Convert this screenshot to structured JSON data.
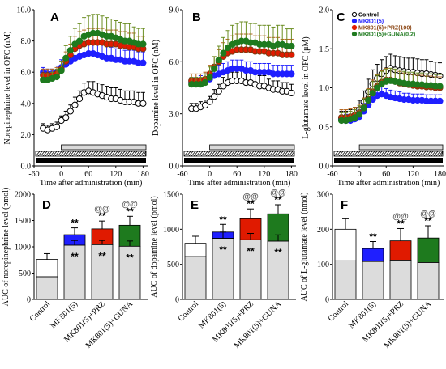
{
  "colors": {
    "control": "#ffffff",
    "mk801": "#1f1fff",
    "prz": "#e01a00",
    "guna": "#1e7a1e",
    "base": "#dcdcdc",
    "err_prz": "#b5651d",
    "err_guna": "#6b8e23"
  },
  "common": {
    "xlabel": "Time after administration (min)",
    "xticks": [
      "-60",
      "0",
      "60",
      "120",
      "180"
    ]
  },
  "chart_data": [
    {
      "panel": "A",
      "type": "line",
      "ylabel": "Norepinephrine level in OFC (nM)",
      "ylim": [
        0,
        10
      ],
      "yticks": [
        "0.0",
        "2.0",
        "4.0",
        "6.0",
        "8.0",
        "10.0"
      ],
      "x": [
        -40,
        -30,
        -20,
        -10,
        0,
        10,
        20,
        30,
        40,
        50,
        60,
        70,
        80,
        90,
        100,
        110,
        120,
        130,
        140,
        150,
        160,
        170,
        180
      ],
      "series": [
        {
          "name": "Control",
          "style": "control",
          "values": [
            2.4,
            2.3,
            2.4,
            2.5,
            2.9,
            3.1,
            3.5,
            3.9,
            4.3,
            4.7,
            4.8,
            4.7,
            4.6,
            4.5,
            4.4,
            4.3,
            4.3,
            4.2,
            4.1,
            4.1,
            4.1,
            4.0,
            4.0
          ],
          "err": [
            0.3,
            0.3,
            0.3,
            0.3,
            0.3,
            0.4,
            0.4,
            0.5,
            0.5,
            0.6,
            0.6,
            0.7,
            0.7,
            0.7,
            0.7,
            0.7,
            0.7,
            0.7,
            0.7,
            0.7,
            0.7,
            0.7,
            0.7
          ]
        },
        {
          "name": "MK801(5)",
          "style": "mk801",
          "values": [
            6.0,
            5.9,
            5.9,
            6.0,
            6.3,
            6.5,
            6.7,
            6.9,
            7.0,
            7.1,
            7.2,
            7.2,
            7.1,
            7.0,
            6.9,
            6.9,
            6.8,
            6.8,
            6.7,
            6.7,
            6.7,
            6.6,
            6.6
          ],
          "err": [
            0.3,
            0.3,
            0.3,
            0.4,
            0.5,
            0.5,
            0.6,
            0.6,
            0.7,
            0.7,
            0.8,
            0.8,
            0.8,
            0.8,
            0.8,
            0.7,
            0.7,
            0.7,
            0.7,
            0.7,
            0.7,
            0.7,
            0.7
          ]
        },
        {
          "name": "MK801(5)+PRZ(100)",
          "style": "prz",
          "values": [
            5.8,
            5.8,
            5.8,
            5.9,
            6.2,
            6.7,
            7.1,
            7.5,
            7.7,
            7.8,
            7.9,
            7.9,
            7.9,
            7.9,
            7.8,
            7.8,
            7.8,
            7.7,
            7.7,
            7.6,
            7.6,
            7.5,
            7.5
          ],
          "err": [
            0.4,
            0.4,
            0.4,
            0.4,
            0.5,
            0.6,
            0.7,
            0.8,
            0.9,
            0.9,
            0.9,
            0.9,
            0.9,
            0.9,
            0.9,
            0.9,
            0.9,
            0.9,
            0.9,
            0.9,
            0.9,
            0.8,
            0.8
          ]
        },
        {
          "name": "MK801(5)+GUNA(0.2)",
          "style": "guna",
          "values": [
            5.5,
            5.5,
            5.6,
            5.7,
            6.1,
            6.9,
            7.4,
            7.8,
            8.0,
            8.3,
            8.4,
            8.5,
            8.5,
            8.4,
            8.3,
            8.3,
            8.2,
            8.1,
            8.0,
            8.0,
            7.9,
            7.8,
            7.8
          ],
          "err": [
            0.4,
            0.4,
            0.4,
            0.5,
            0.6,
            0.8,
            0.9,
            1.0,
            1.1,
            1.2,
            1.2,
            1.2,
            1.2,
            1.2,
            1.2,
            1.1,
            1.1,
            1.1,
            1.1,
            1.1,
            1.0,
            1.0,
            1.0
          ]
        }
      ]
    },
    {
      "panel": "B",
      "type": "line",
      "ylabel": "Dopamine level in OFC (nM)",
      "ylim": [
        0,
        9
      ],
      "yticks": [
        "0.0",
        "3.0",
        "6.0",
        "9.0"
      ],
      "x": [
        -40,
        -30,
        -20,
        -10,
        0,
        10,
        20,
        30,
        40,
        50,
        60,
        70,
        80,
        90,
        100,
        110,
        120,
        130,
        140,
        150,
        160,
        170,
        180
      ],
      "series": [
        {
          "name": "Control",
          "style": "control",
          "values": [
            3.3,
            3.3,
            3.4,
            3.5,
            3.7,
            4.0,
            4.3,
            4.6,
            4.8,
            4.9,
            4.9,
            4.9,
            4.8,
            4.8,
            4.7,
            4.6,
            4.6,
            4.5,
            4.4,
            4.4,
            4.3,
            4.3,
            4.2
          ],
          "err": [
            0.3,
            0.3,
            0.3,
            0.3,
            0.3,
            0.4,
            0.4,
            0.5,
            0.5,
            0.5,
            0.5,
            0.6,
            0.6,
            0.6,
            0.6,
            0.6,
            0.6,
            0.5,
            0.5,
            0.5,
            0.5,
            0.5,
            0.5
          ]
        },
        {
          "name": "MK801(5)",
          "style": "mk801",
          "values": [
            4.8,
            4.8,
            4.8,
            4.9,
            5.0,
            5.2,
            5.3,
            5.4,
            5.5,
            5.6,
            5.6,
            5.6,
            5.5,
            5.5,
            5.4,
            5.4,
            5.4,
            5.4,
            5.3,
            5.3,
            5.3,
            5.3,
            5.3
          ],
          "err": [
            0.3,
            0.3,
            0.4,
            0.4,
            0.4,
            0.5,
            0.5,
            0.5,
            0.5,
            0.5,
            0.5,
            0.5,
            0.5,
            0.5,
            0.5,
            0.5,
            0.5,
            0.5,
            0.5,
            0.5,
            0.5,
            0.5,
            0.5
          ]
        },
        {
          "name": "MK801(5)+PRZ(100)",
          "style": "prz",
          "values": [
            4.9,
            4.9,
            4.9,
            5.0,
            5.3,
            5.7,
            6.0,
            6.3,
            6.5,
            6.6,
            6.7,
            6.7,
            6.7,
            6.7,
            6.6,
            6.6,
            6.6,
            6.5,
            6.5,
            6.5,
            6.4,
            6.4,
            6.4
          ],
          "err": [
            0.4,
            0.4,
            0.4,
            0.4,
            0.5,
            0.6,
            0.7,
            0.8,
            0.8,
            0.9,
            0.9,
            0.9,
            0.9,
            0.9,
            0.9,
            0.9,
            0.9,
            0.9,
            0.9,
            0.9,
            0.9,
            0.9,
            0.9
          ]
        },
        {
          "name": "MK801(5)+GUNA(0.2)",
          "style": "guna",
          "values": [
            4.7,
            4.7,
            4.7,
            4.8,
            5.1,
            5.6,
            6.1,
            6.5,
            6.8,
            7.0,
            7.1,
            7.2,
            7.2,
            7.1,
            7.1,
            7.0,
            7.0,
            7.0,
            6.9,
            7.0,
            7.0,
            6.9,
            6.9
          ],
          "err": [
            0.4,
            0.4,
            0.4,
            0.5,
            0.6,
            0.7,
            0.8,
            0.9,
            1.0,
            1.1,
            1.1,
            1.1,
            1.1,
            1.1,
            1.1,
            1.1,
            1.1,
            1.1,
            1.1,
            1.1,
            1.1,
            1.0,
            1.0
          ]
        }
      ]
    },
    {
      "panel": "C",
      "type": "line",
      "ylabel": "L-glutamate level in OFC (μM)",
      "ylim": [
        0,
        2
      ],
      "yticks": [
        "0.0",
        "0.5",
        "1.0",
        "1.5",
        "2.0"
      ],
      "x": [
        -40,
        -30,
        -20,
        -10,
        0,
        10,
        20,
        30,
        40,
        50,
        60,
        70,
        80,
        90,
        100,
        110,
        120,
        130,
        140,
        150,
        160,
        170,
        180
      ],
      "legend": [
        "Control",
        "MK801(5)",
        "MK801(5)+PRZ(100)",
        "MK801(5)+GUNA(0.2)"
      ],
      "series": [
        {
          "name": "Control",
          "style": "control",
          "values": [
            0.6,
            0.6,
            0.62,
            0.65,
            0.72,
            0.82,
            0.95,
            1.05,
            1.12,
            1.18,
            1.22,
            1.25,
            1.23,
            1.22,
            1.21,
            1.2,
            1.2,
            1.19,
            1.18,
            1.18,
            1.17,
            1.16,
            1.15
          ],
          "err": [
            0.1,
            0.1,
            0.1,
            0.1,
            0.12,
            0.14,
            0.16,
            0.18,
            0.18,
            0.18,
            0.18,
            0.18,
            0.18,
            0.18,
            0.18,
            0.18,
            0.18,
            0.18,
            0.18,
            0.18,
            0.17,
            0.17,
            0.17
          ]
        },
        {
          "name": "MK801(5)",
          "style": "mk801",
          "values": [
            0.6,
            0.58,
            0.58,
            0.6,
            0.63,
            0.7,
            0.78,
            0.85,
            0.9,
            0.92,
            0.9,
            0.88,
            0.87,
            0.86,
            0.85,
            0.85,
            0.84,
            0.84,
            0.84,
            0.83,
            0.83,
            0.83,
            0.83
          ],
          "err": [
            0.08,
            0.08,
            0.08,
            0.08,
            0.09,
            0.1,
            0.1,
            0.1,
            0.1,
            0.1,
            0.09,
            0.09,
            0.09,
            0.09,
            0.08,
            0.08,
            0.08,
            0.08,
            0.08,
            0.08,
            0.08,
            0.08,
            0.08
          ]
        },
        {
          "name": "MK801(5)+PRZ(100)",
          "style": "prz",
          "values": [
            0.62,
            0.62,
            0.63,
            0.65,
            0.68,
            0.75,
            0.85,
            0.95,
            1.02,
            1.07,
            1.1,
            1.1,
            1.08,
            1.06,
            1.05,
            1.04,
            1.03,
            1.02,
            1.02,
            1.01,
            1.01,
            1.0,
            1.0
          ],
          "err": [
            0.1,
            0.1,
            0.1,
            0.1,
            0.11,
            0.12,
            0.14,
            0.15,
            0.15,
            0.15,
            0.15,
            0.15,
            0.15,
            0.15,
            0.14,
            0.14,
            0.14,
            0.14,
            0.14,
            0.14,
            0.14,
            0.14,
            0.14
          ]
        },
        {
          "name": "MK801(5)+GUNA(0.2)",
          "style": "guna",
          "values": [
            0.58,
            0.58,
            0.6,
            0.62,
            0.66,
            0.74,
            0.84,
            0.93,
            1.0,
            1.05,
            1.08,
            1.09,
            1.08,
            1.07,
            1.06,
            1.05,
            1.05,
            1.04,
            1.04,
            1.03,
            1.03,
            1.02,
            1.02
          ],
          "err": [
            0.1,
            0.1,
            0.1,
            0.1,
            0.11,
            0.12,
            0.14,
            0.15,
            0.16,
            0.16,
            0.16,
            0.16,
            0.16,
            0.16,
            0.15,
            0.15,
            0.15,
            0.15,
            0.15,
            0.15,
            0.15,
            0.15,
            0.15
          ]
        }
      ]
    },
    {
      "panel": "D",
      "type": "bar",
      "ylabel": "AUC of norepinephrine level (pmol)",
      "ylim": [
        0,
        2000
      ],
      "yticks": [
        "0",
        "500",
        "1000",
        "1500",
        "2000"
      ],
      "categories": [
        "Control",
        "MK801(5)",
        "MK801(5)+PRZ",
        "MK801(5)+GUNA"
      ],
      "base": [
        430,
        1030,
        1040,
        1010
      ],
      "top": [
        760,
        1230,
        1340,
        1410
      ],
      "top_err": [
        110,
        130,
        150,
        170
      ],
      "base_err": [
        0,
        90,
        80,
        100
      ],
      "sig_top": [
        "",
        "**",
        "**",
        "**"
      ],
      "sig_base": [
        "",
        "**",
        "**",
        "**"
      ],
      "sig_at": [
        "",
        "",
        "@@",
        "@@"
      ]
    },
    {
      "panel": "E",
      "type": "bar",
      "ylabel": "AUC of dopamine level (pmol)",
      "ylim": [
        0,
        1500
      ],
      "yticks": [
        "0",
        "500",
        "1000",
        "1500"
      ],
      "categories": [
        "Control",
        "MK801(5)",
        "MK801(5)+PRZ",
        "MK801(5)+GUNA"
      ],
      "base": [
        610,
        870,
        850,
        830
      ],
      "top": [
        800,
        960,
        1150,
        1220
      ],
      "top_err": [
        100,
        110,
        140,
        130
      ],
      "base_err": [
        0,
        90,
        90,
        90
      ],
      "sig_top": [
        "",
        "**",
        "**",
        "**"
      ],
      "sig_base": [
        "",
        "**",
        "**",
        "**"
      ],
      "sig_at": [
        "",
        "",
        "@@",
        "@@"
      ]
    },
    {
      "panel": "F",
      "type": "bar",
      "ylabel": "AUC of L-glutamate level (nmol)",
      "ylim": [
        0,
        300
      ],
      "yticks": [
        "0",
        "100",
        "200",
        "300"
      ],
      "categories": [
        "Control",
        "MK801(5)",
        "MK801(5)+PRZ",
        "MK801(5)+GUNA"
      ],
      "base": [
        110,
        108,
        112,
        105
      ],
      "top": [
        200,
        145,
        167,
        175
      ],
      "top_err": [
        30,
        20,
        35,
        35
      ],
      "base_err": [
        0,
        0,
        0,
        0
      ],
      "sig_top": [
        "",
        "**",
        "**",
        "**"
      ],
      "sig_base": [
        "",
        "",
        "",
        ""
      ],
      "sig_at": [
        "",
        "",
        "@@",
        "@@"
      ]
    }
  ]
}
